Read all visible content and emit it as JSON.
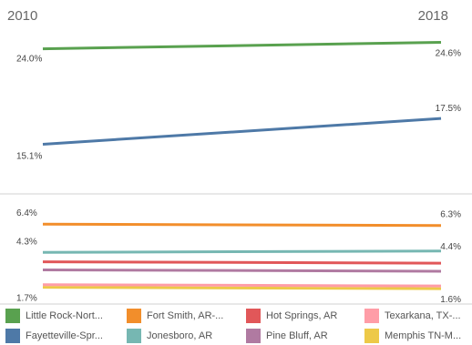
{
  "chart_data": {
    "type": "line",
    "x": [
      "2010",
      "2018"
    ],
    "series": [
      {
        "name": "Little Rock-Nort...",
        "color": "#59a14f",
        "values": [
          24.0,
          24.6
        ],
        "labels": [
          "24.0%",
          "24.6%"
        ],
        "panel": "top"
      },
      {
        "name": "Fayetteville-Spr...",
        "color": "#4e79a7",
        "values": [
          15.1,
          17.5
        ],
        "labels": [
          "15.1%",
          "17.5%"
        ],
        "panel": "top"
      },
      {
        "name": "Fort Smith, AR-...",
        "color": "#f28e2b",
        "values": [
          6.4,
          6.3
        ],
        "labels": [
          "6.4%",
          "6.3%"
        ],
        "panel": "bottom"
      },
      {
        "name": "Jonesboro, AR",
        "color": "#76b7b2",
        "values": [
          4.3,
          4.4
        ],
        "labels": [
          "4.3%",
          "4.4%"
        ],
        "panel": "bottom"
      },
      {
        "name": "Hot Springs, AR",
        "color": "#e15759",
        "values": [
          3.6,
          3.5
        ],
        "labels": [
          "",
          ""
        ],
        "panel": "bottom"
      },
      {
        "name": "Pine Bluff, AR",
        "color": "#b07aa1",
        "values": [
          3.0,
          2.9
        ],
        "labels": [
          "",
          ""
        ],
        "panel": "bottom"
      },
      {
        "name": "Texarkana, TX-...",
        "color": "#ff9da7",
        "values": [
          1.9,
          1.8
        ],
        "labels": [
          "",
          ""
        ],
        "panel": "bottom"
      },
      {
        "name": "Memphis TN-M...",
        "color": "#edc948",
        "values": [
          1.7,
          1.6
        ],
        "labels": [
          "1.7%",
          "1.6%"
        ],
        "panel": "bottom"
      }
    ],
    "top_ylim": [
      12,
      26
    ],
    "bottom_ylim": [
      1,
      7.5
    ],
    "grid": false,
    "legend_position": "bottom"
  },
  "legend": {
    "items": [
      {
        "label": "Little Rock-Nort...",
        "color": "#59a14f"
      },
      {
        "label": "Fort Smith, AR-...",
        "color": "#f28e2b"
      },
      {
        "label": "Hot Springs, AR",
        "color": "#e15759"
      },
      {
        "label": "Texarkana, TX-...",
        "color": "#ff9da7"
      },
      {
        "label": "Fayetteville-Spr...",
        "color": "#4e79a7"
      },
      {
        "label": "Jonesboro, AR",
        "color": "#76b7b2"
      },
      {
        "label": "Pine Bluff, AR",
        "color": "#b07aa1"
      },
      {
        "label": "Memphis TN-M...",
        "color": "#edc948"
      }
    ]
  }
}
